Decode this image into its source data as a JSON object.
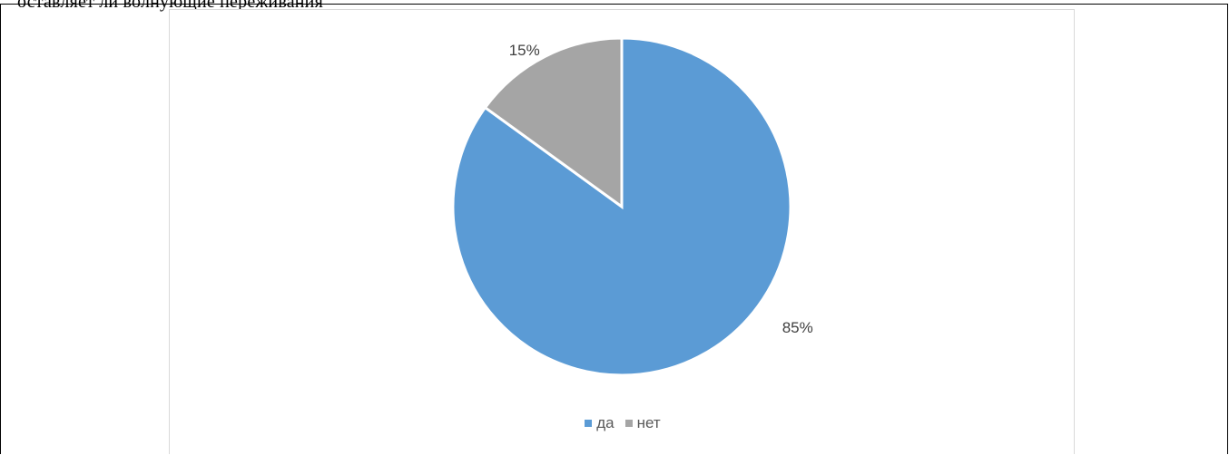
{
  "page": {
    "clipped_text": "оставляет ли волнующие переживания"
  },
  "colors": {
    "да": "#5b9bd5",
    "нет": "#a5a5a5",
    "border": "#d9d9d9",
    "label": "#404040"
  },
  "chart_data": {
    "type": "pie",
    "title": "",
    "categories": [
      "да",
      "нет"
    ],
    "values": [
      85,
      15
    ],
    "data_labels": [
      "85%",
      "15%"
    ],
    "start_angle_deg": 0,
    "direction": "clockwise",
    "legend": {
      "position": "bottom",
      "entries": [
        "да",
        "нет"
      ]
    }
  }
}
